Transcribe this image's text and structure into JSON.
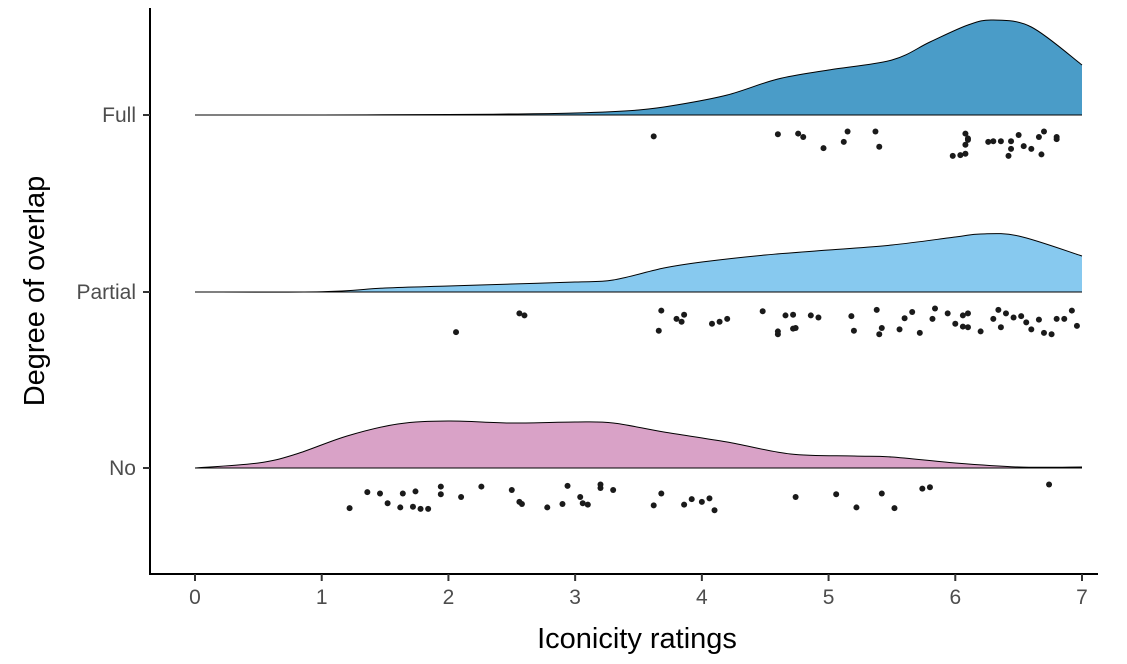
{
  "chart_data": {
    "type": "raincloud",
    "xlabel": "Iconicity ratings",
    "ylabel": "Degree of overlap",
    "xlim": [
      0,
      7
    ],
    "x_ticks": [
      0,
      1,
      2,
      3,
      4,
      5,
      6,
      7
    ],
    "x_tick_labels": [
      "0",
      "1",
      "2",
      "3",
      "4",
      "5",
      "6",
      "7"
    ],
    "grid": false,
    "legend": "none",
    "groups": [
      {
        "name": "Full",
        "color": "#4a9cc8",
        "density": [
          [
            0,
            0
          ],
          [
            1,
            0
          ],
          [
            2,
            0.005
          ],
          [
            2.5,
            0.01
          ],
          [
            3,
            0.02
          ],
          [
            3.5,
            0.05
          ],
          [
            3.8,
            0.1
          ],
          [
            4.2,
            0.2
          ],
          [
            4.6,
            0.36
          ],
          [
            5,
            0.45
          ],
          [
            5.5,
            0.55
          ],
          [
            5.8,
            0.73
          ],
          [
            6.1,
            0.9
          ],
          [
            6.3,
            0.95
          ],
          [
            6.6,
            0.88
          ],
          [
            7,
            0.5
          ]
        ],
        "points": [
          [
            3.62,
            0.12
          ],
          [
            4.6,
            0.09
          ],
          [
            4.76,
            0.08
          ],
          [
            4.8,
            0.13
          ],
          [
            5.15,
            0.05
          ],
          [
            5.37,
            0.05
          ],
          [
            5.12,
            0.2
          ],
          [
            4.96,
            0.29
          ],
          [
            5.4,
            0.27
          ],
          [
            6.08,
            0.08
          ],
          [
            6.1,
            0.15
          ],
          [
            6.1,
            0.17
          ],
          [
            6.08,
            0.24
          ],
          [
            6.26,
            0.2
          ],
          [
            6.3,
            0.19
          ],
          [
            6.36,
            0.19
          ],
          [
            6.44,
            0.19
          ],
          [
            6.5,
            0.1
          ],
          [
            6.54,
            0.26
          ],
          [
            6.7,
            0.05
          ],
          [
            6.66,
            0.13
          ],
          [
            6.8,
            0.13
          ],
          [
            6.8,
            0.16
          ],
          [
            6.44,
            0.3
          ],
          [
            6.6,
            0.3
          ],
          [
            6.42,
            0.4
          ],
          [
            6.68,
            0.38
          ],
          [
            6.08,
            0.37
          ],
          [
            6.04,
            0.39
          ],
          [
            5.98,
            0.4
          ]
        ]
      },
      {
        "name": "Partial",
        "color": "#87c9ef",
        "density": [
          [
            0,
            0
          ],
          [
            1,
            0.003
          ],
          [
            1.5,
            0.04
          ],
          [
            2,
            0.06
          ],
          [
            2.5,
            0.08
          ],
          [
            3,
            0.1
          ],
          [
            3.3,
            0.12
          ],
          [
            3.7,
            0.24
          ],
          [
            4,
            0.3
          ],
          [
            4.5,
            0.37
          ],
          [
            5,
            0.42
          ],
          [
            5.5,
            0.47
          ],
          [
            6,
            0.55
          ],
          [
            6.2,
            0.58
          ],
          [
            6.5,
            0.56
          ],
          [
            7,
            0.36
          ]
        ],
        "points": [
          [
            2.56,
            0.12
          ],
          [
            2.6,
            0.15
          ],
          [
            2.06,
            0.39
          ],
          [
            3.68,
            0.08
          ],
          [
            3.66,
            0.37
          ],
          [
            3.8,
            0.2
          ],
          [
            3.86,
            0.14
          ],
          [
            3.84,
            0.24
          ],
          [
            4.08,
            0.27
          ],
          [
            4.14,
            0.24
          ],
          [
            4.2,
            0.2
          ],
          [
            4.48,
            0.09
          ],
          [
            4.6,
            0.38
          ],
          [
            4.6,
            0.42
          ],
          [
            4.72,
            0.34
          ],
          [
            4.74,
            0.33
          ],
          [
            4.66,
            0.15
          ],
          [
            4.72,
            0.14
          ],
          [
            4.86,
            0.15
          ],
          [
            4.92,
            0.18
          ],
          [
            5.18,
            0.16
          ],
          [
            5.2,
            0.37
          ],
          [
            5.38,
            0.07
          ],
          [
            5.4,
            0.42
          ],
          [
            5.42,
            0.33
          ],
          [
            5.56,
            0.35
          ],
          [
            5.6,
            0.19
          ],
          [
            5.66,
            0.1
          ],
          [
            5.72,
            0.4
          ],
          [
            5.84,
            0.05
          ],
          [
            5.82,
            0.2
          ],
          [
            5.94,
            0.12
          ],
          [
            6,
            0.27
          ],
          [
            6.06,
            0.15
          ],
          [
            6.06,
            0.31
          ],
          [
            6.1,
            0.32
          ],
          [
            6.1,
            0.12
          ],
          [
            6.2,
            0.38
          ],
          [
            6.3,
            0.2
          ],
          [
            6.34,
            0.07
          ],
          [
            6.36,
            0.32
          ],
          [
            6.4,
            0.12
          ],
          [
            6.46,
            0.18
          ],
          [
            6.52,
            0.16
          ],
          [
            6.56,
            0.25
          ],
          [
            6.6,
            0.35
          ],
          [
            6.66,
            0.21
          ],
          [
            6.7,
            0.4
          ],
          [
            6.76,
            0.42
          ],
          [
            6.8,
            0.2
          ],
          [
            6.86,
            0.2
          ],
          [
            6.92,
            0.08
          ],
          [
            6.96,
            0.3
          ]
        ]
      },
      {
        "name": "No",
        "color": "#d9a2c7",
        "density": [
          [
            0,
            0
          ],
          [
            0.5,
            0.05
          ],
          [
            0.8,
            0.14
          ],
          [
            1.2,
            0.32
          ],
          [
            1.6,
            0.44
          ],
          [
            2,
            0.47
          ],
          [
            2.5,
            0.45
          ],
          [
            3,
            0.46
          ],
          [
            3.3,
            0.45
          ],
          [
            3.7,
            0.36
          ],
          [
            4.2,
            0.26
          ],
          [
            4.7,
            0.14
          ],
          [
            5.2,
            0.12
          ],
          [
            5.5,
            0.11
          ],
          [
            6,
            0.05
          ],
          [
            6.5,
            0.01
          ],
          [
            7,
            0.01
          ]
        ],
        "points": [
          [
            1.22,
            0.39
          ],
          [
            1.36,
            0.16
          ],
          [
            1.46,
            0.18
          ],
          [
            1.52,
            0.32
          ],
          [
            1.62,
            0.38
          ],
          [
            1.64,
            0.18
          ],
          [
            1.72,
            0.37
          ],
          [
            1.74,
            0.15
          ],
          [
            1.78,
            0.4
          ],
          [
            1.84,
            0.4
          ],
          [
            1.94,
            0.19
          ],
          [
            1.94,
            0.08
          ],
          [
            2.1,
            0.23
          ],
          [
            2.26,
            0.08
          ],
          [
            2.5,
            0.13
          ],
          [
            2.56,
            0.3
          ],
          [
            2.58,
            0.33
          ],
          [
            2.78,
            0.38
          ],
          [
            2.9,
            0.33
          ],
          [
            2.94,
            0.07
          ],
          [
            3.04,
            0.23
          ],
          [
            3.06,
            0.32
          ],
          [
            3.1,
            0.34
          ],
          [
            3.2,
            0.05
          ],
          [
            3.2,
            0.1
          ],
          [
            3.3,
            0.13
          ],
          [
            3.62,
            0.35
          ],
          [
            3.68,
            0.18
          ],
          [
            3.86,
            0.34
          ],
          [
            3.92,
            0.26
          ],
          [
            4,
            0.3
          ],
          [
            4.06,
            0.25
          ],
          [
            4.1,
            0.42
          ],
          [
            4.74,
            0.23
          ],
          [
            5.06,
            0.19
          ],
          [
            5.22,
            0.38
          ],
          [
            5.42,
            0.18
          ],
          [
            5.52,
            0.39
          ],
          [
            5.74,
            0.11
          ],
          [
            5.8,
            0.09
          ],
          [
            6.74,
            0.05
          ]
        ]
      }
    ]
  }
}
